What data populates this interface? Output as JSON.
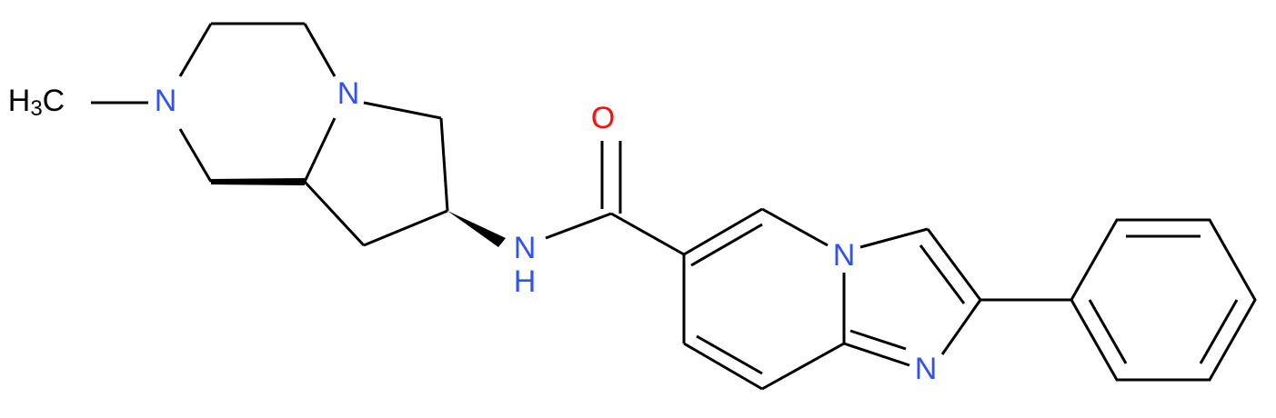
{
  "atoms": {
    "methyl": {
      "main": "H",
      "sub": "3",
      "tail": "C"
    },
    "n_methyl": "N",
    "n_bridge": "N",
    "n_amide": "N",
    "h_amide": "H",
    "o_carbonyl": "O",
    "n_ring4": "N",
    "n_ring1": "N"
  }
}
